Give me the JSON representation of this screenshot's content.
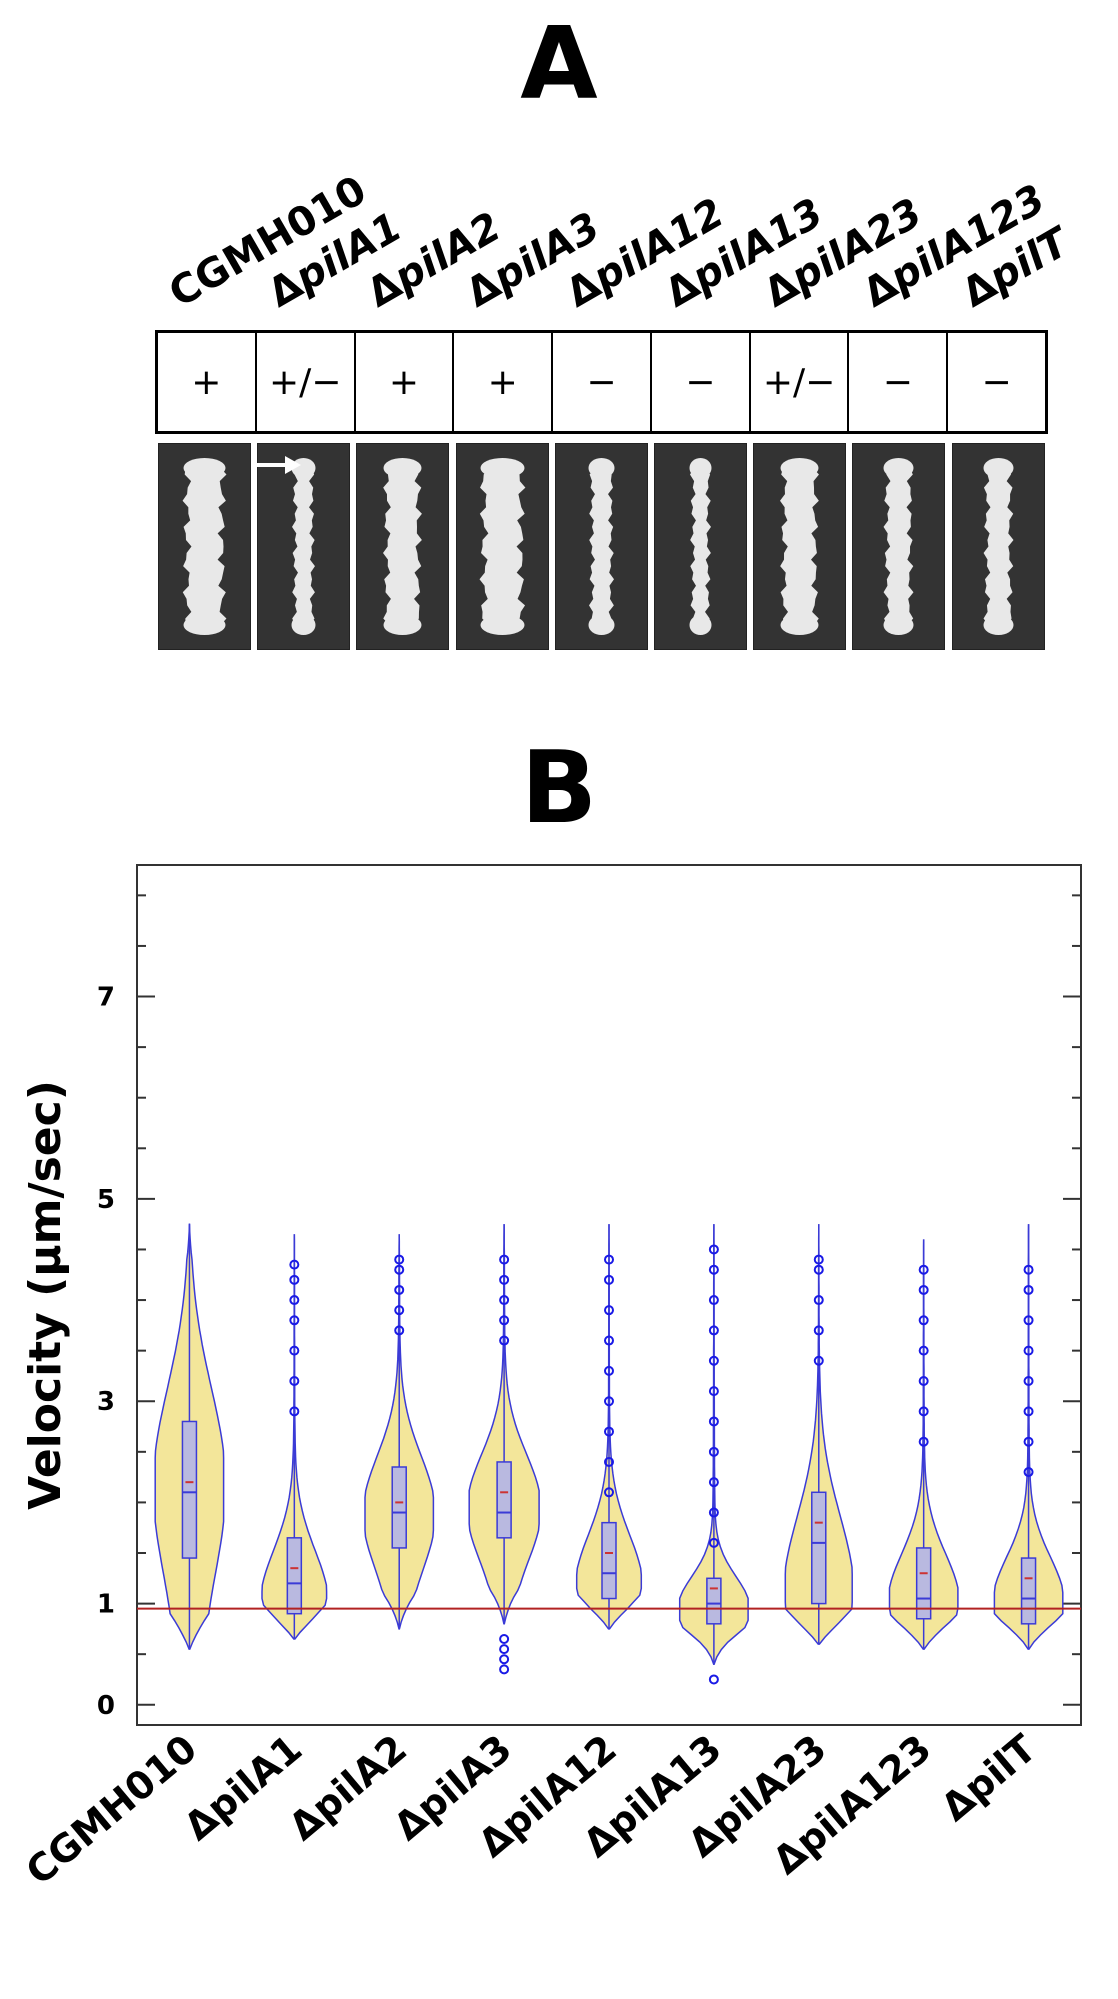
{
  "panels": {
    "a": "A",
    "b": "B"
  },
  "strains": [
    {
      "prefix": "",
      "name": "CGMH010"
    },
    {
      "prefix": "Δ",
      "name": "pilA1"
    },
    {
      "prefix": "Δ",
      "name": "pilA2"
    },
    {
      "prefix": "Δ",
      "name": "pilA3"
    },
    {
      "prefix": "Δ",
      "name": "pilA12"
    },
    {
      "prefix": "Δ",
      "name": "pilA13"
    },
    {
      "prefix": "Δ",
      "name": "pilA23"
    },
    {
      "prefix": "Δ",
      "name": "pilA123"
    },
    {
      "prefix": "Δ",
      "name": "pilT"
    }
  ],
  "motility": [
    "+",
    "+/−",
    "+",
    "+",
    "−",
    "−",
    "+/−",
    "−",
    "−"
  ],
  "colors": {
    "violin_fill": "#f3e69a",
    "violin_stroke": "#3b3bd6",
    "outlier": "#1a1ae6",
    "reference_line": "#b22222",
    "box_fill": "#b9b9e0",
    "photo_bg": "#333333",
    "colony": "#e8e8e8"
  },
  "chart_data": {
    "type": "violin",
    "ylabel": "Velocity (µm/sec)",
    "xlabel": "",
    "yticks": [
      0,
      1,
      3,
      5,
      7
    ],
    "ylim": [
      -0.2,
      8.3
    ],
    "reference_line": 0.95,
    "categories": [
      "CGMH010",
      "ΔpilA1",
      "ΔpilA2",
      "ΔpilA3",
      "ΔpilA12",
      "ΔpilA13",
      "ΔpilA23",
      "ΔpilA123",
      "ΔpilT"
    ],
    "series": [
      {
        "category": "CGMH010",
        "min": 0.55,
        "q1": 1.45,
        "median": 2.1,
        "mean": 2.2,
        "q3": 2.8,
        "max": 4.75,
        "outliers": [],
        "peak": 2.2,
        "max_half_width": 0.9
      },
      {
        "category": "ΔpilA1",
        "min": 0.65,
        "q1": 0.9,
        "median": 1.2,
        "mean": 1.35,
        "q3": 1.65,
        "max": 4.65,
        "outliers": [
          2.9,
          3.2,
          3.5,
          3.8,
          4.0,
          4.2,
          4.35
        ],
        "peak": 1.0,
        "max_half_width": 0.85
      },
      {
        "category": "ΔpilA2",
        "min": 0.75,
        "q1": 1.55,
        "median": 1.9,
        "mean": 2.0,
        "q3": 2.35,
        "max": 4.65,
        "outliers": [
          3.7,
          3.9,
          4.1,
          4.3,
          4.4
        ],
        "peak": 1.9,
        "max_half_width": 0.9
      },
      {
        "category": "ΔpilA3",
        "min": 0.8,
        "q1": 1.65,
        "median": 1.9,
        "mean": 2.1,
        "q3": 2.4,
        "max": 4.75,
        "outliers": [
          0.35,
          0.45,
          0.55,
          0.65,
          3.6,
          3.8,
          4.0,
          4.2,
          4.4
        ],
        "peak": 1.95,
        "max_half_width": 0.92
      },
      {
        "category": "ΔpilA12",
        "min": 0.75,
        "q1": 1.05,
        "median": 1.3,
        "mean": 1.5,
        "q3": 1.8,
        "max": 4.75,
        "outliers": [
          2.1,
          2.4,
          2.7,
          3.0,
          3.3,
          3.6,
          3.9,
          4.2,
          4.4
        ],
        "peak": 1.15,
        "max_half_width": 0.85
      },
      {
        "category": "ΔpilA13",
        "min": 0.4,
        "q1": 0.8,
        "median": 1.0,
        "mean": 1.15,
        "q3": 1.25,
        "max": 4.75,
        "outliers": [
          0.25,
          1.6,
          1.9,
          2.2,
          2.5,
          2.8,
          3.1,
          3.4,
          3.7,
          4.0,
          4.3,
          4.5
        ],
        "peak": 0.95,
        "max_half_width": 0.9
      },
      {
        "category": "ΔpilA23",
        "min": 0.6,
        "q1": 1.0,
        "median": 1.6,
        "mean": 1.8,
        "q3": 2.1,
        "max": 4.75,
        "outliers": [
          3.4,
          3.7,
          4.0,
          4.3,
          4.4
        ],
        "peak": 1.1,
        "max_half_width": 0.88
      },
      {
        "category": "ΔpilA123",
        "min": 0.55,
        "q1": 0.85,
        "median": 1.05,
        "mean": 1.3,
        "q3": 1.55,
        "max": 4.6,
        "outliers": [
          2.6,
          2.9,
          3.2,
          3.5,
          3.8,
          4.1,
          4.3
        ],
        "peak": 1.0,
        "max_half_width": 0.9
      },
      {
        "category": "ΔpilT",
        "min": 0.55,
        "q1": 0.8,
        "median": 1.05,
        "mean": 1.25,
        "q3": 1.45,
        "max": 4.75,
        "outliers": [
          2.3,
          2.6,
          2.9,
          3.2,
          3.5,
          3.8,
          4.1,
          4.3
        ],
        "peak": 1.0,
        "max_half_width": 0.9
      }
    ]
  }
}
